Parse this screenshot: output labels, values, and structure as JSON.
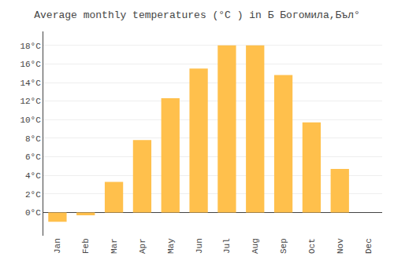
{
  "chart_data": {
    "type": "bar",
    "title": "Average monthly temperatures (°C ) in Б Богомила,Бъл°",
    "categories": [
      "Jan",
      "Feb",
      "Mar",
      "Apr",
      "May",
      "Jun",
      "Jul",
      "Aug",
      "Sep",
      "Oct",
      "Nov",
      "Dec"
    ],
    "values": [
      -1.0,
      -0.3,
      3.3,
      7.8,
      12.3,
      15.5,
      18.0,
      18.0,
      14.8,
      9.7,
      4.7,
      0.0
    ],
    "color": "#FFC04C",
    "ylim": [
      -2.5,
      19.5
    ],
    "yticks": [
      {
        "value": 0,
        "label": "0°C"
      },
      {
        "value": 2,
        "label": "2°C"
      },
      {
        "value": 4,
        "label": "4°C"
      },
      {
        "value": 6,
        "label": "6°C"
      },
      {
        "value": 8,
        "label": "8°C"
      },
      {
        "value": 10,
        "label": "10°C"
      },
      {
        "value": 12,
        "label": "12°C"
      },
      {
        "value": 14,
        "label": "14°C"
      },
      {
        "value": 16,
        "label": "16°C"
      },
      {
        "value": 18,
        "label": "18°C"
      }
    ],
    "grid": true
  }
}
